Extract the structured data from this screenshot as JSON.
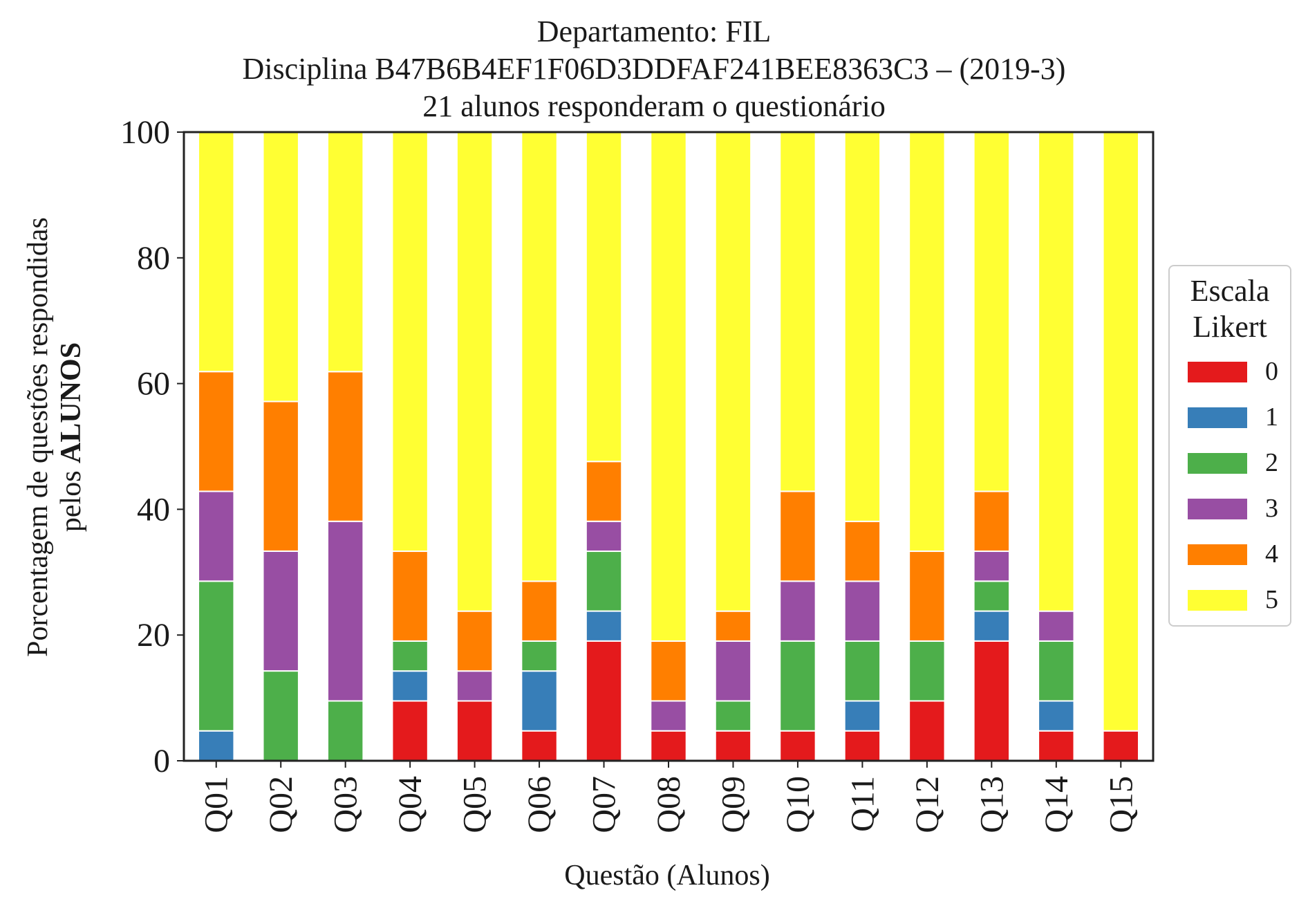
{
  "title": {
    "line1": "Departamento: FIL",
    "line2": "Disciplina B47B6B4EF1F06D3DDFAF241BEE8363C3 – (2019-3)",
    "line3": "21 alunos responderam o questionário"
  },
  "axes": {
    "ylabel_line1": "Porcentagem de questões respondidas",
    "ylabel_line2_prefix": "pelos ",
    "ylabel_line2_bold": "ALUNOS",
    "xlabel": "Questão (Alunos)"
  },
  "legend": {
    "title_line1": "Escala",
    "title_line2": "Likert"
  },
  "chart_data": {
    "type": "bar",
    "stacked": true,
    "categories": [
      "Q01",
      "Q02",
      "Q03",
      "Q04",
      "Q05",
      "Q06",
      "Q07",
      "Q08",
      "Q09",
      "Q10",
      "Q11",
      "Q12",
      "Q13",
      "Q14",
      "Q15"
    ],
    "ylim": [
      0,
      100
    ],
    "yticks": [
      0,
      20,
      40,
      60,
      80,
      100
    ],
    "grid": false,
    "legend_position": "right",
    "series": [
      {
        "name": "0",
        "color": "#e41a1c",
        "values": [
          0,
          0,
          0,
          9.52,
          9.52,
          4.76,
          19.05,
          4.76,
          4.76,
          4.76,
          4.76,
          9.52,
          19.05,
          4.76,
          4.76
        ]
      },
      {
        "name": "1",
        "color": "#377eb8",
        "values": [
          4.76,
          0,
          0,
          4.76,
          0,
          9.52,
          4.76,
          0,
          0,
          0,
          4.76,
          0,
          4.76,
          4.76,
          0
        ]
      },
      {
        "name": "2",
        "color": "#4daf4a",
        "values": [
          23.81,
          14.29,
          9.52,
          4.76,
          0,
          4.76,
          9.52,
          0,
          4.76,
          14.29,
          9.52,
          9.52,
          4.76,
          9.52,
          0
        ]
      },
      {
        "name": "3",
        "color": "#984ea3",
        "values": [
          14.29,
          19.05,
          28.57,
          0,
          4.76,
          0,
          4.76,
          4.76,
          9.52,
          9.52,
          9.52,
          0,
          4.76,
          4.76,
          0
        ]
      },
      {
        "name": "4",
        "color": "#ff7f00",
        "values": [
          19.05,
          23.81,
          23.81,
          14.29,
          9.52,
          9.52,
          9.52,
          9.52,
          4.76,
          14.29,
          9.52,
          14.29,
          9.52,
          0,
          0
        ]
      },
      {
        "name": "5",
        "color": "#ffff33",
        "values": [
          38.1,
          42.86,
          38.1,
          66.67,
          76.19,
          71.43,
          52.38,
          80.95,
          76.19,
          57.14,
          61.9,
          66.67,
          57.14,
          76.19,
          95.24
        ]
      }
    ]
  }
}
